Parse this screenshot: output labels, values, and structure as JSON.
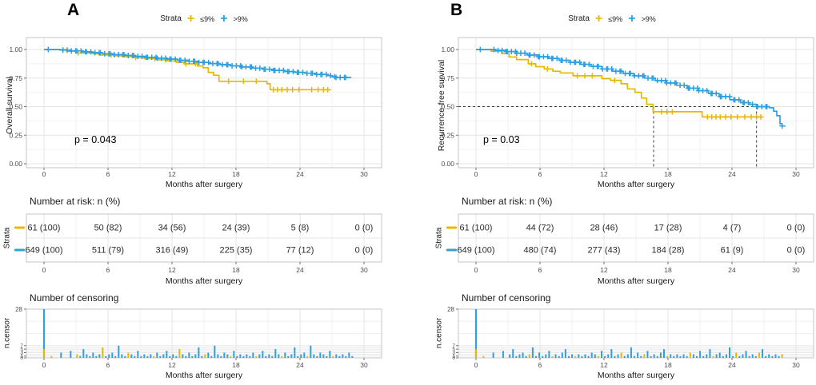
{
  "chart_data": {
    "type": "line",
    "subtype": "kaplan-meier-survival",
    "xlabel": "Months after surgery",
    "x_ticks": [
      0,
      6,
      12,
      18,
      24,
      30
    ],
    "x_range_months": [
      0,
      30
    ],
    "y_range": [
      0,
      1
    ],
    "colors": {
      "le9": "#E7B800",
      "gt9": "#2E9FDF",
      "grid_major": "#E4E4E4",
      "grid_minor": "#F2F2F2",
      "panel_border": "#C6C6C6",
      "tick_text": "#4D4D4D"
    },
    "panels": [
      {
        "letter": "A",
        "legend": {
          "title": "Strata",
          "items": [
            {
              "label": "≤9%",
              "color": "#E7B800"
            },
            {
              "label": ">9%",
              "color": "#2E9FDF"
            }
          ]
        },
        "survival": {
          "ylabel": "Overall survival",
          "xlabel": "Months after surgery",
          "pvalue": "p = 0.043",
          "yticks": [
            "0.00",
            "0.25",
            "0.50",
            "0.75",
            "1.00"
          ],
          "median": null,
          "series": [
            {
              "name": "≤9%",
              "color": "#E7B800",
              "steps": [
                [
                  0,
                  1
                ],
                [
                  1.8,
                  1
                ],
                [
                  2.1,
                  0.985
                ],
                [
                  3,
                  0.97
                ],
                [
                  4.6,
                  0.962
                ],
                [
                  5.2,
                  0.952
                ],
                [
                  6.5,
                  0.945
                ],
                [
                  7.6,
                  0.937
                ],
                [
                  8.3,
                  0.93
                ],
                [
                  9.4,
                  0.92
                ],
                [
                  10.6,
                  0.91
                ],
                [
                  11.5,
                  0.9
                ],
                [
                  12.4,
                  0.888
                ],
                [
                  13.2,
                  0.875
                ],
                [
                  14.4,
                  0.855
                ],
                [
                  14.9,
                  0.84
                ],
                [
                  15.4,
                  0.8
                ],
                [
                  15.9,
                  0.775
                ],
                [
                  16.4,
                  0.722
                ],
                [
                  20.6,
                  0.722
                ],
                [
                  20.9,
                  0.7
                ],
                [
                  21.2,
                  0.648
                ],
                [
                  26.9,
                  0.648
                ]
              ],
              "censors": [
                3.2,
                6.3,
                8.6,
                10.4,
                11.4,
                13.3,
                14.2,
                17.3,
                18.7,
                19.9,
                21.5,
                21.9,
                22.3,
                22.8,
                23.3,
                23.9,
                25.1,
                25.7,
                26.2,
                26.6
              ]
            },
            {
              "name": ">9%",
              "color": "#2E9FDF",
              "steps": [
                [
                  0,
                  1
                ],
                [
                  1.5,
                  0.995
                ],
                [
                  2.5,
                  0.988
                ],
                [
                  3.5,
                  0.98
                ],
                [
                  4.5,
                  0.972
                ],
                [
                  5.5,
                  0.963
                ],
                [
                  6.5,
                  0.955
                ],
                [
                  7.5,
                  0.948
                ],
                [
                  8.5,
                  0.94
                ],
                [
                  9.5,
                  0.932
                ],
                [
                  10.5,
                  0.924
                ],
                [
                  11.5,
                  0.916
                ],
                [
                  12.5,
                  0.906
                ],
                [
                  13.5,
                  0.897
                ],
                [
                  14.5,
                  0.887
                ],
                [
                  15.5,
                  0.877
                ],
                [
                  16.5,
                  0.867
                ],
                [
                  17.5,
                  0.857
                ],
                [
                  18.5,
                  0.847
                ],
                [
                  19.5,
                  0.837
                ],
                [
                  20.5,
                  0.827
                ],
                [
                  21.5,
                  0.817
                ],
                [
                  22.5,
                  0.807
                ],
                [
                  23.5,
                  0.8
                ],
                [
                  24.5,
                  0.792
                ],
                [
                  25.5,
                  0.782
                ],
                [
                  26.5,
                  0.772
                ],
                [
                  27,
                  0.762
                ],
                [
                  27.3,
                  0.755
                ],
                [
                  28.8,
                  0.755
                ]
              ],
              "censor_range": {
                "from": 1.9,
                "to": 28.4,
                "count": 85,
                "extra": [
                  0.4
                ]
              }
            }
          ]
        },
        "risk_table": {
          "title": "Number at risk: n (%)",
          "axis_label": "Strata",
          "xlabel": "Months after surgery",
          "rows": [
            {
              "color": "#E7B800",
              "values": [
                "61 (100)",
                "50 (82)",
                "34 (56)",
                "24 (39)",
                "5 (8)",
                "0 (0)"
              ]
            },
            {
              "color": "#2E9FDF",
              "values": [
                "649 (100)",
                "511 (79)",
                "316 (49)",
                "225 (35)",
                "77 (12)",
                "0 (0)"
              ]
            }
          ]
        },
        "censor_plot": {
          "title": "Number of censoring",
          "ylabel": "n.censor",
          "xlabel": "Months after surgery",
          "ymax": 28,
          "ytick_top": "28",
          "yticks_bottom": [
            "7",
            "5",
            "3",
            "1",
            "0"
          ],
          "ytick_bottom_values": [
            7,
            5,
            3,
            1,
            0
          ],
          "spike": {
            "month": 0,
            "blue_height": 28,
            "yellow_height": 5
          },
          "bars": {
            "start": 0.7,
            "end": 28.9,
            "count": 95,
            "yellow_every": 8,
            "sparse_until": 3,
            "heights": [
              1,
              2,
              1,
              3,
              1,
              2,
              4,
              1,
              2,
              1,
              5,
              2,
              1,
              3,
              1,
              2,
              6,
              1,
              2,
              3,
              1,
              7,
              2,
              1,
              3,
              2,
              1,
              4,
              1,
              2
            ]
          }
        }
      },
      {
        "letter": "B",
        "legend": {
          "title": "Strata",
          "items": [
            {
              "label": "≤9%",
              "color": "#E7B800"
            },
            {
              "label": ">9%",
              "color": "#2E9FDF"
            }
          ]
        },
        "survival": {
          "ylabel": "Recurrence-free survival",
          "xlabel": "Months after surgery",
          "pvalue": "p = 0.03",
          "yticks": [
            "0.00",
            "0.25",
            "0.50",
            "0.75",
            "1.00"
          ],
          "median": {
            "h_value": 0.5,
            "h_to": 26.3,
            "v_at": [
              16.65,
              26.3
            ]
          },
          "series": [
            {
              "name": "≤9%",
              "color": "#E7B800",
              "steps": [
                [
                  0,
                  1
                ],
                [
                  1.4,
                  0.985
                ],
                [
                  2.4,
                  0.965
                ],
                [
                  3.1,
                  0.935
                ],
                [
                  3.8,
                  0.912
                ],
                [
                  4.9,
                  0.875
                ],
                [
                  5.6,
                  0.85
                ],
                [
                  6.4,
                  0.83
                ],
                [
                  7.2,
                  0.81
                ],
                [
                  7.9,
                  0.795
                ],
                [
                  9.1,
                  0.77
                ],
                [
                  11.8,
                  0.745
                ],
                [
                  12.6,
                  0.73
                ],
                [
                  13.6,
                  0.7
                ],
                [
                  14.2,
                  0.655
                ],
                [
                  14.9,
                  0.625
                ],
                [
                  15.5,
                  0.575
                ],
                [
                  16,
                  0.52
                ],
                [
                  16.6,
                  0.455
                ],
                [
                  20.8,
                  0.455
                ],
                [
                  21.2,
                  0.41
                ],
                [
                  26.9,
                  0.41
                ]
              ],
              "censors": [
                5.2,
                6.7,
                9.5,
                10.2,
                10.9,
                13,
                17.4,
                17.9,
                18.4,
                21.7,
                22.1,
                22.5,
                22.9,
                23.4,
                23.9,
                24.5,
                25.2,
                25.8,
                26.3,
                26.7
              ]
            },
            {
              "name": ">9%",
              "color": "#2E9FDF",
              "steps": [
                [
                  0,
                  1
                ],
                [
                  1.8,
                  0.992
                ],
                [
                  2.8,
                  0.982
                ],
                [
                  3.8,
                  0.968
                ],
                [
                  4.8,
                  0.952
                ],
                [
                  5.8,
                  0.937
                ],
                [
                  6.8,
                  0.922
                ],
                [
                  7.8,
                  0.905
                ],
                [
                  8.8,
                  0.888
                ],
                [
                  9.8,
                  0.87
                ],
                [
                  10.8,
                  0.852
                ],
                [
                  11.8,
                  0.83
                ],
                [
                  12.8,
                  0.81
                ],
                [
                  13.8,
                  0.79
                ],
                [
                  14.8,
                  0.77
                ],
                [
                  15.8,
                  0.75
                ],
                [
                  16.8,
                  0.728
                ],
                [
                  17.8,
                  0.707
                ],
                [
                  18.8,
                  0.687
                ],
                [
                  19.8,
                  0.662
                ],
                [
                  20.8,
                  0.64
                ],
                [
                  21.8,
                  0.615
                ],
                [
                  22.8,
                  0.588
                ],
                [
                  23.8,
                  0.56
                ],
                [
                  24.8,
                  0.535
                ],
                [
                  25.6,
                  0.52
                ],
                [
                  26.3,
                  0.5
                ],
                [
                  27.5,
                  0.49
                ],
                [
                  27.9,
                  0.46
                ],
                [
                  28.2,
                  0.42
                ],
                [
                  28.5,
                  0.35
                ],
                [
                  28.7,
                  0.33
                ],
                [
                  29,
                  0.33
                ]
              ],
              "censor_range": {
                "from": 1.8,
                "to": 27.4,
                "count": 85,
                "extra": [
                  0.4,
                  28.7
                ]
              }
            }
          ]
        },
        "risk_table": {
          "title": "Number at risk: n (%)",
          "axis_label": "Strata",
          "xlabel": "Months after surgery",
          "rows": [
            {
              "color": "#E7B800",
              "values": [
                "61 (100)",
                "44 (72)",
                "28 (46)",
                "17 (28)",
                "4 (7)",
                "0 (0)"
              ]
            },
            {
              "color": "#2E9FDF",
              "values": [
                "649 (100)",
                "480 (74)",
                "277 (43)",
                "184 (28)",
                "61 (9)",
                "0 (0)"
              ]
            }
          ]
        },
        "censor_plot": {
          "title": "Number of censoring",
          "ylabel": "n.censor",
          "xlabel": "Months after surgery",
          "ymax": 28,
          "ytick_top": "28",
          "yticks_bottom": [
            "7",
            "5",
            "3",
            "1",
            "0"
          ],
          "ytick_bottom_values": [
            7,
            5,
            3,
            1,
            0
          ],
          "spike": {
            "month": 0,
            "blue_height": 28,
            "yellow_height": 5
          },
          "bars": {
            "start": 0.7,
            "end": 28.7,
            "count": 92,
            "yellow_every": 7,
            "sparse_until": 3,
            "heights": [
              1,
              2,
              1,
              3,
              2,
              1,
              4,
              1,
              2,
              5,
              1,
              2,
              3,
              1,
              2,
              6,
              1,
              3,
              1,
              2,
              4,
              1,
              2,
              1,
              3,
              5,
              1,
              2,
              1,
              2
            ]
          }
        }
      }
    ]
  }
}
